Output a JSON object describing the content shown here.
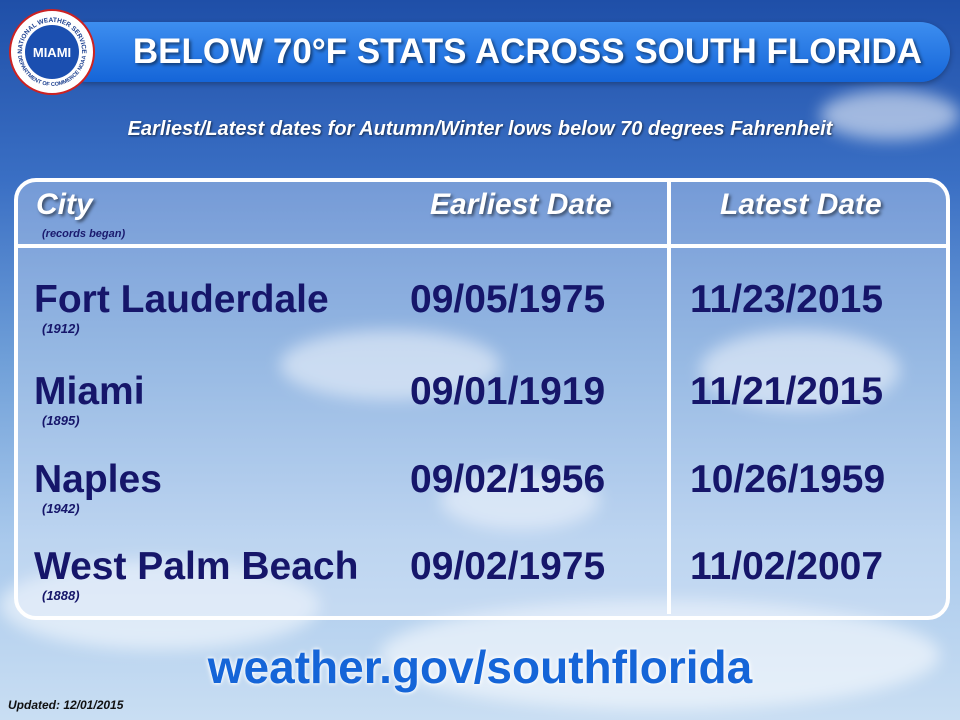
{
  "header": {
    "title": "BELOW 70°F STATS ACROSS SOUTH FLORIDA",
    "logo": {
      "center": "MIAMI",
      "ring_top": "NATIONAL WEATHER SERVICE",
      "ring_bottom": "DEPARTMENT OF COMMERCE NOAA"
    }
  },
  "subtitle": "Earliest/Latest dates for Autumn/Winter lows below 70 degrees Fahrenheit",
  "table": {
    "columns": [
      "City",
      "Earliest Date",
      "Latest Date"
    ],
    "column_note": "(records began)",
    "rows": [
      {
        "city": "Fort Lauderdale",
        "began": "(1912)",
        "earliest": "09/05/1975",
        "latest": "11/23/2015"
      },
      {
        "city": "Miami",
        "began": "(1895)",
        "earliest": "09/01/1919",
        "latest": "11/21/2015"
      },
      {
        "city": "Naples",
        "began": "(1942)",
        "earliest": "09/02/1956",
        "latest": "10/26/1959"
      },
      {
        "city": "West Palm Beach",
        "began": "(1888)",
        "earliest": "09/02/1975",
        "latest": "11/02/2007"
      }
    ]
  },
  "footer": {
    "url": "weather.gov/southflorida",
    "updated": "Updated:  12/01/2015"
  }
}
